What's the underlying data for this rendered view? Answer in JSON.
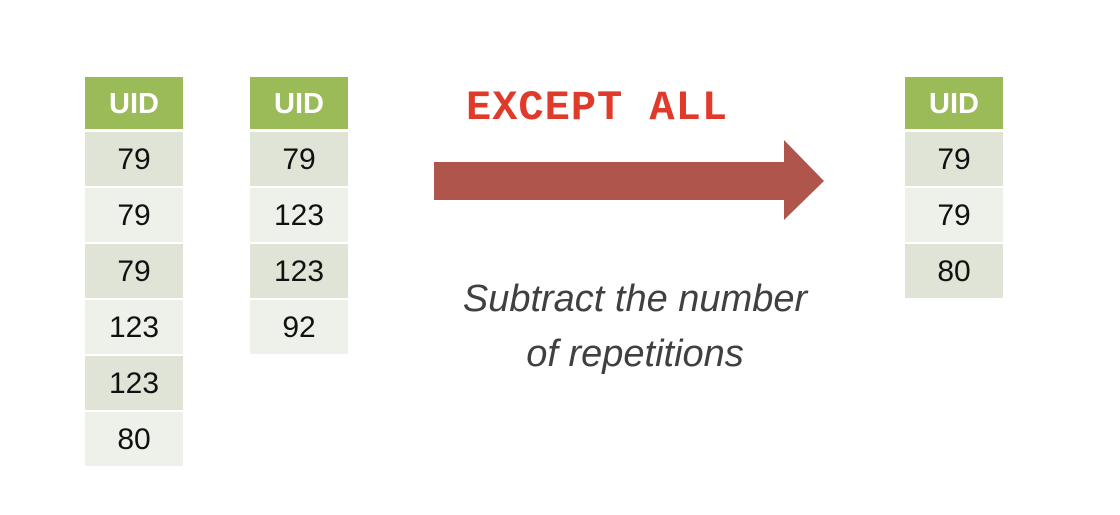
{
  "left_table": {
    "header": "UID",
    "rows": [
      "79",
      "79",
      "79",
      "123",
      "123",
      "80"
    ]
  },
  "right_table": {
    "header": "UID",
    "rows": [
      "79",
      "123",
      "123",
      "92"
    ]
  },
  "operator": "EXCEPT ALL",
  "description": {
    "line1": "Subtract the number",
    "line2": "of repetitions"
  },
  "result_table": {
    "header": "UID",
    "rows": [
      "79",
      "79",
      "80"
    ]
  },
  "colors": {
    "header": "#9bbb59",
    "row_odd": "#dfe4d6",
    "row_even": "#eef1ea",
    "arrow": "#b0554c",
    "operator_text": "#e03a2a",
    "description_text": "#404040"
  }
}
